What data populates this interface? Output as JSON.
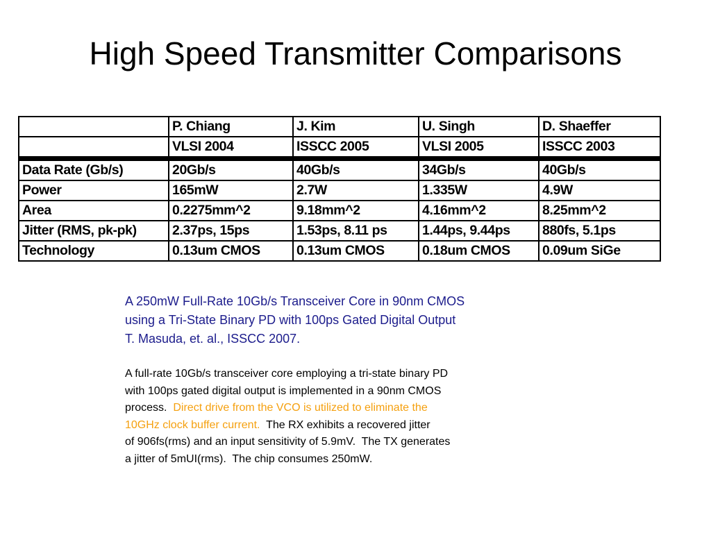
{
  "title": "High Speed Transmitter Comparisons",
  "table": {
    "authors": [
      "P. Chiang",
      "J. Kim",
      "U. Singh",
      "D. Shaeffer"
    ],
    "venues": [
      "VLSI 2004",
      "ISSCC 2005",
      "VLSI 2005",
      "ISSCC 2003"
    ],
    "rows": [
      [
        "Data Rate (Gb/s)",
        "20Gb/s",
        "40Gb/s",
        "34Gb/s",
        "40Gb/s"
      ],
      [
        "Power",
        "165mW",
        "2.7W",
        "1.335W",
        "4.9W"
      ],
      [
        "Area",
        "0.2275mm^2",
        "9.18mm^2",
        "4.16mm^2",
        "8.25mm^2"
      ],
      [
        "Jitter (RMS, pk-pk)",
        "2.37ps, 15ps",
        "1.53ps, 8.11 ps",
        "1.44ps, 9.44ps",
        "880fs, 5.1ps"
      ],
      [
        "Technology",
        "0.13um CMOS",
        "0.13um CMOS",
        "0.18um CMOS",
        "0.09um SiGe"
      ]
    ]
  },
  "citation": {
    "lines": [
      "A 250mW Full-Rate 10Gb/s Transceiver Core in 90nm CMOS",
      "using a Tri-State Binary PD with 100ps Gated Digital Output",
      "T. Masuda, et. al., ISSCC 2007."
    ]
  },
  "abstract": {
    "lines": [
      [
        {
          "text": "A full-rate 10Gb/s transceiver core employing a tri-state binary PD",
          "color": "#000000"
        }
      ],
      [
        {
          "text": "with 100ps gated digital output is implemented in a 90nm CMOS",
          "color": "#000000"
        }
      ],
      [
        {
          "text": "process.  ",
          "color": "#000000"
        },
        {
          "text": "Direct drive from the VCO is utilized to eliminate the",
          "color": "#f5a00f"
        }
      ],
      [
        {
          "text": "10GHz clock buffer current.  ",
          "color": "#f5a00f"
        },
        {
          "text": "The RX exhibits a recovered jitter",
          "color": "#000000"
        }
      ],
      [
        {
          "text": "of 906fs(rms) and an input sensitivity of 5.9mV.  The TX generates",
          "color": "#000000"
        }
      ],
      [
        {
          "text": "a jitter of 5mUI(rms).  The chip consumes 250mW.",
          "color": "#000000"
        }
      ]
    ]
  }
}
